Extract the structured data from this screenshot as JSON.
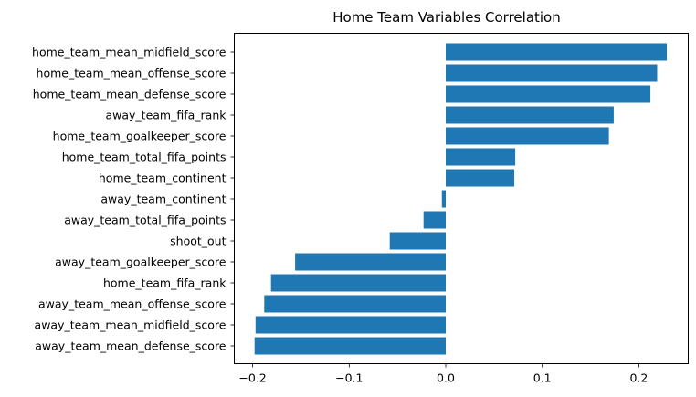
{
  "chart_data": {
    "type": "bar",
    "orientation": "horizontal",
    "title": "Home Team Variables Correlation",
    "xlabel": "",
    "ylabel": "",
    "xlim": [
      -0.22,
      0.25
    ],
    "xticks": [
      -0.2,
      -0.1,
      0.0,
      0.1,
      0.2
    ],
    "xtick_labels": [
      "−0.2",
      "−0.1",
      "0.0",
      "0.1",
      "0.2"
    ],
    "grid": false,
    "bar_color": "#1f77b4",
    "categories": [
      "home_team_mean_midfield_score",
      "home_team_mean_offense_score",
      "home_team_mean_defense_score",
      "away_team_fifa_rank",
      "home_team_goalkeeper_score",
      "home_team_total_fifa_points",
      "home_team_continent",
      "away_team_continent",
      "away_team_total_fifa_points",
      "shoot_out",
      "away_team_goalkeeper_score",
      "home_team_fifa_rank",
      "away_team_mean_offense_score",
      "away_team_mean_midfield_score",
      "away_team_mean_defense_score"
    ],
    "values": [
      0.229,
      0.219,
      0.212,
      0.174,
      0.169,
      0.072,
      0.071,
      -0.004,
      -0.023,
      -0.058,
      -0.156,
      -0.181,
      -0.188,
      -0.197,
      -0.198
    ]
  }
}
